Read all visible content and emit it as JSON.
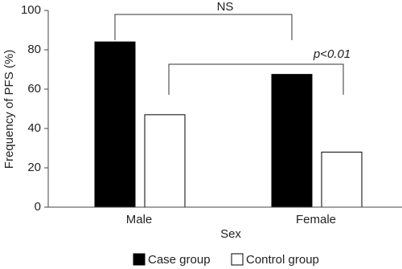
{
  "chart_data": {
    "type": "bar",
    "x_label": "Sex",
    "y_label": "Frequency of PFS (%)",
    "categories": [
      "Male",
      "Female"
    ],
    "series": [
      {
        "name": "Case group",
        "color": "#000000",
        "values": [
          84,
          67.5
        ]
      },
      {
        "name": "Control group",
        "color": "#ffffff",
        "values": [
          47,
          28
        ]
      }
    ],
    "ylim": [
      0,
      100
    ],
    "yticks": [
      0,
      20,
      40,
      60,
      80,
      100
    ],
    "annotations": [
      "NS",
      "p<0.01"
    ],
    "legend": "bottom"
  }
}
